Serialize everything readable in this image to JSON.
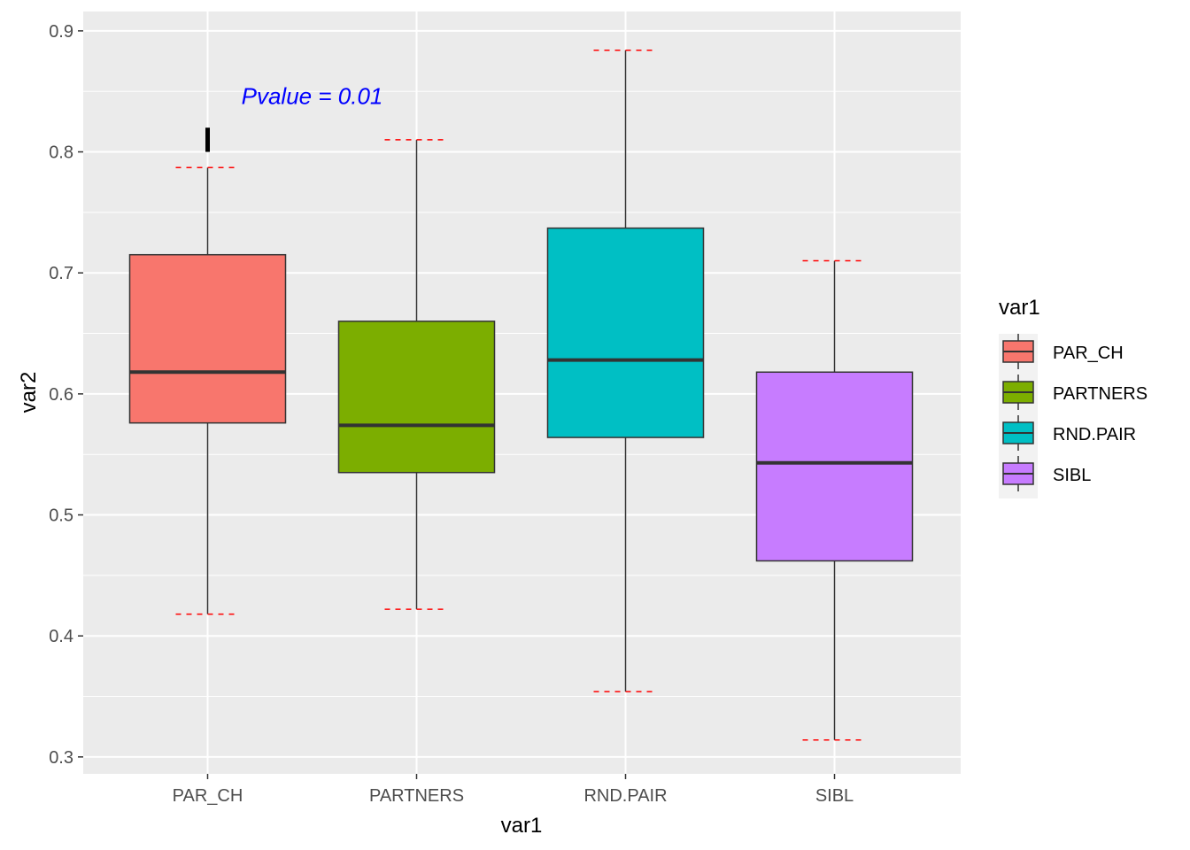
{
  "chart_data": {
    "type": "boxplot",
    "xlabel": "var1",
    "ylabel": "var2",
    "ylim": [
      0.286,
      0.916
    ],
    "yticks": [
      0.3,
      0.4,
      0.5,
      0.6,
      0.7,
      0.8,
      0.9
    ],
    "ytick_labels": [
      "0.3",
      "0.4",
      "0.5",
      "0.6",
      "0.7",
      "0.8",
      "0.9"
    ],
    "categories": [
      "PAR_CH",
      "PARTNERS",
      "RND.PAIR",
      "SIBL"
    ],
    "boxes": [
      {
        "category": "PAR_CH",
        "color": "#F8766D",
        "whisker_low": 0.418,
        "q1": 0.576,
        "median": 0.618,
        "q3": 0.715,
        "whisker_high": 0.787,
        "limit_low": 0.418,
        "limit_high": 0.787
      },
      {
        "category": "PARTNERS",
        "color": "#7CAE00",
        "whisker_low": 0.422,
        "q1": 0.535,
        "median": 0.574,
        "q3": 0.66,
        "whisker_high": 0.81,
        "limit_low": 0.422,
        "limit_high": 0.81
      },
      {
        "category": "RND.PAIR",
        "color": "#00BFC4",
        "whisker_low": 0.354,
        "q1": 0.564,
        "median": 0.628,
        "q3": 0.737,
        "whisker_high": 0.884,
        "limit_low": 0.354,
        "limit_high": 0.884
      },
      {
        "category": "SIBL",
        "color": "#C77CFF",
        "whisker_low": 0.314,
        "q1": 0.462,
        "median": 0.543,
        "q3": 0.618,
        "whisker_high": 0.71,
        "limit_low": 0.314,
        "limit_high": 0.71
      }
    ],
    "outliers": [
      {
        "category": "PAR_CH",
        "y_low": 0.8,
        "y_high": 0.82
      }
    ],
    "annotation": {
      "text": "Pvalue = 0.01",
      "color": "#0000FF",
      "x_category_index": 0,
      "x_offset": 0.5,
      "y": 0.846
    },
    "legend": {
      "title": "var1",
      "position": "right",
      "items": [
        "PAR_CH",
        "PARTNERS",
        "RND.PAIR",
        "SIBL"
      ]
    },
    "grid": true,
    "panel_background": "#EBEBEB",
    "limit_line_color": "#FF0000"
  }
}
